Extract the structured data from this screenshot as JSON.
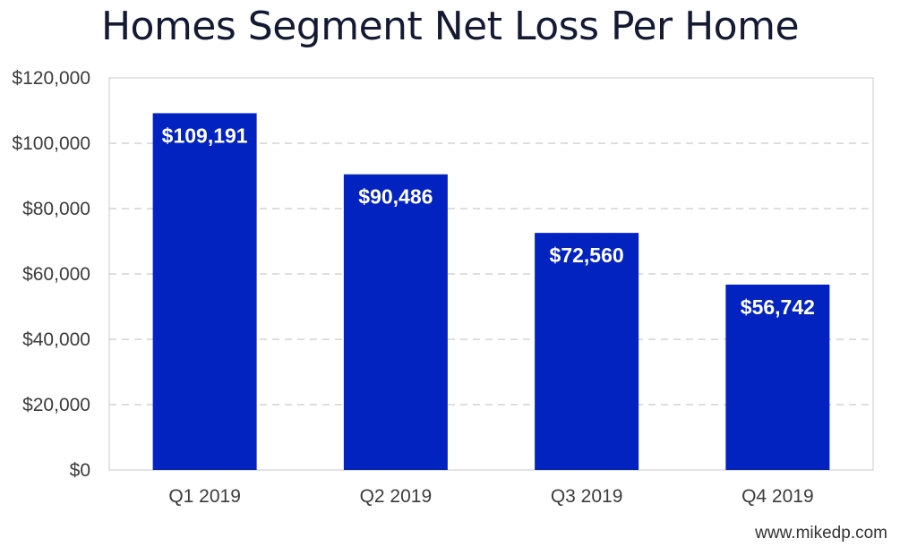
{
  "chart_data": {
    "type": "bar",
    "title": "Homes Segment Net Loss Per Home",
    "categories": [
      "Q1 2019",
      "Q2 2019",
      "Q3 2019",
      "Q4 2019"
    ],
    "values": [
      109191,
      90486,
      72560,
      56742
    ],
    "data_labels": [
      "$109,191",
      "$90,486",
      "$72,560",
      "$56,742"
    ],
    "y_ticks": [
      0,
      20000,
      40000,
      60000,
      80000,
      100000,
      120000
    ],
    "y_tick_labels": [
      "$0",
      "$20,000",
      "$40,000",
      "$60,000",
      "$80,000",
      "$100,000",
      "$120,000"
    ],
    "ylim": [
      0,
      120000
    ],
    "xlabel": "",
    "ylabel": "",
    "grid": true,
    "bar_color": "#0323c0"
  },
  "watermark": "www.mikedp.com"
}
